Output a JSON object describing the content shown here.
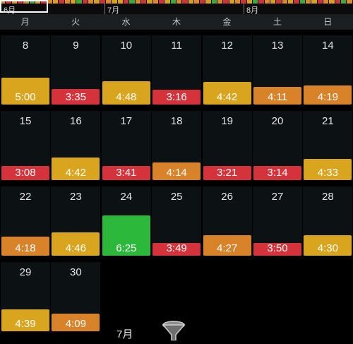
{
  "timeline": {
    "months": [
      "6月",
      "7月",
      "8月"
    ],
    "strip_colors": [
      "#d98a2b",
      "#c9353b",
      "#d6a020",
      "#c9353b",
      "#d98a2b",
      "#3fa83a",
      "#d6a020",
      "#c9353b",
      "#d98a2b",
      "#d6a020",
      "#c9353b",
      "#d98a2b",
      "#d6a020",
      "#3fa83a",
      "#c9353b",
      "#d98a2b",
      "#d6a020",
      "#c9353b",
      "#d98a2b",
      "#d6a020",
      "#d6a020",
      "#c9353b",
      "#3fa83a",
      "#d98a2b",
      "#c9353b",
      "#d6a020",
      "#d98a2b",
      "#c9353b",
      "#d6a020",
      "#3fa83a",
      "#d98a2b",
      "#c9353b",
      "#d6a020",
      "#d98a2b",
      "#c9353b",
      "#d6a020",
      "#3fa83a",
      "#d98a2b",
      "#c9353b",
      "#d6a020",
      "#d98a2b",
      "#c9353b",
      "#d6a020",
      "#3fa83a",
      "#c9353b",
      "#d98a2b",
      "#d6a020",
      "#c9353b",
      "#d98a2b",
      "#d6a020",
      "#c9353b",
      "#3fa83a",
      "#d98a2b",
      "#d6a020",
      "#c9353b",
      "#d98a2b",
      "#d6a020",
      "#c9353b",
      "#3fa83a",
      "#d98a2b"
    ]
  },
  "weekdays": [
    "月",
    "火",
    "水",
    "木",
    "金",
    "土",
    "日"
  ],
  "colors": {
    "yellow": "#d9a41e",
    "orange": "#d8822a",
    "red": "#d4333c",
    "green": "#2cb83a"
  },
  "calendar": {
    "rows": [
      [
        {
          "day": "8",
          "time": "5:00",
          "color": "yellow",
          "level": 0.42
        },
        {
          "day": "9",
          "time": "3:35",
          "color": "red",
          "level": 0.24
        },
        {
          "day": "10",
          "time": "4:48",
          "color": "yellow",
          "level": 0.37
        },
        {
          "day": "11",
          "time": "3:16",
          "color": "red",
          "level": 0.23
        },
        {
          "day": "12",
          "time": "4:42",
          "color": "yellow",
          "level": 0.36
        },
        {
          "day": "13",
          "time": "4:11",
          "color": "orange",
          "level": 0.28
        },
        {
          "day": "14",
          "time": "4:19",
          "color": "orange",
          "level": 0.3
        }
      ],
      [
        {
          "day": "15",
          "time": "3:08",
          "color": "red",
          "level": 0.22
        },
        {
          "day": "16",
          "time": "4:42",
          "color": "yellow",
          "level": 0.36
        },
        {
          "day": "17",
          "time": "3:41",
          "color": "red",
          "level": 0.22
        },
        {
          "day": "18",
          "time": "4:14",
          "color": "orange",
          "level": 0.28
        },
        {
          "day": "19",
          "time": "3:21",
          "color": "red",
          "level": 0.22
        },
        {
          "day": "20",
          "time": "3:14",
          "color": "red",
          "level": 0.22
        },
        {
          "day": "21",
          "time": "4:33",
          "color": "yellow",
          "level": 0.33
        }
      ],
      [
        {
          "day": "22",
          "time": "4:18",
          "color": "orange",
          "level": 0.3
        },
        {
          "day": "23",
          "time": "4:46",
          "color": "yellow",
          "level": 0.37
        },
        {
          "day": "24",
          "time": "6:25",
          "color": "green",
          "level": 0.63
        },
        {
          "day": "25",
          "time": "3:49",
          "color": "red",
          "level": 0.2
        },
        {
          "day": "26",
          "time": "4:27",
          "color": "orange",
          "level": 0.32
        },
        {
          "day": "27",
          "time": "3:50",
          "color": "red",
          "level": 0.2
        },
        {
          "day": "28",
          "time": "4:30",
          "color": "yellow",
          "level": 0.32
        }
      ],
      [
        {
          "day": "29",
          "time": "4:39",
          "color": "yellow",
          "level": 0.35
        },
        {
          "day": "30",
          "time": "4:09",
          "color": "orange",
          "level": 0.28
        }
      ]
    ]
  },
  "footer": {
    "current_month": "7月",
    "filter_icon": "funnel-icon"
  }
}
